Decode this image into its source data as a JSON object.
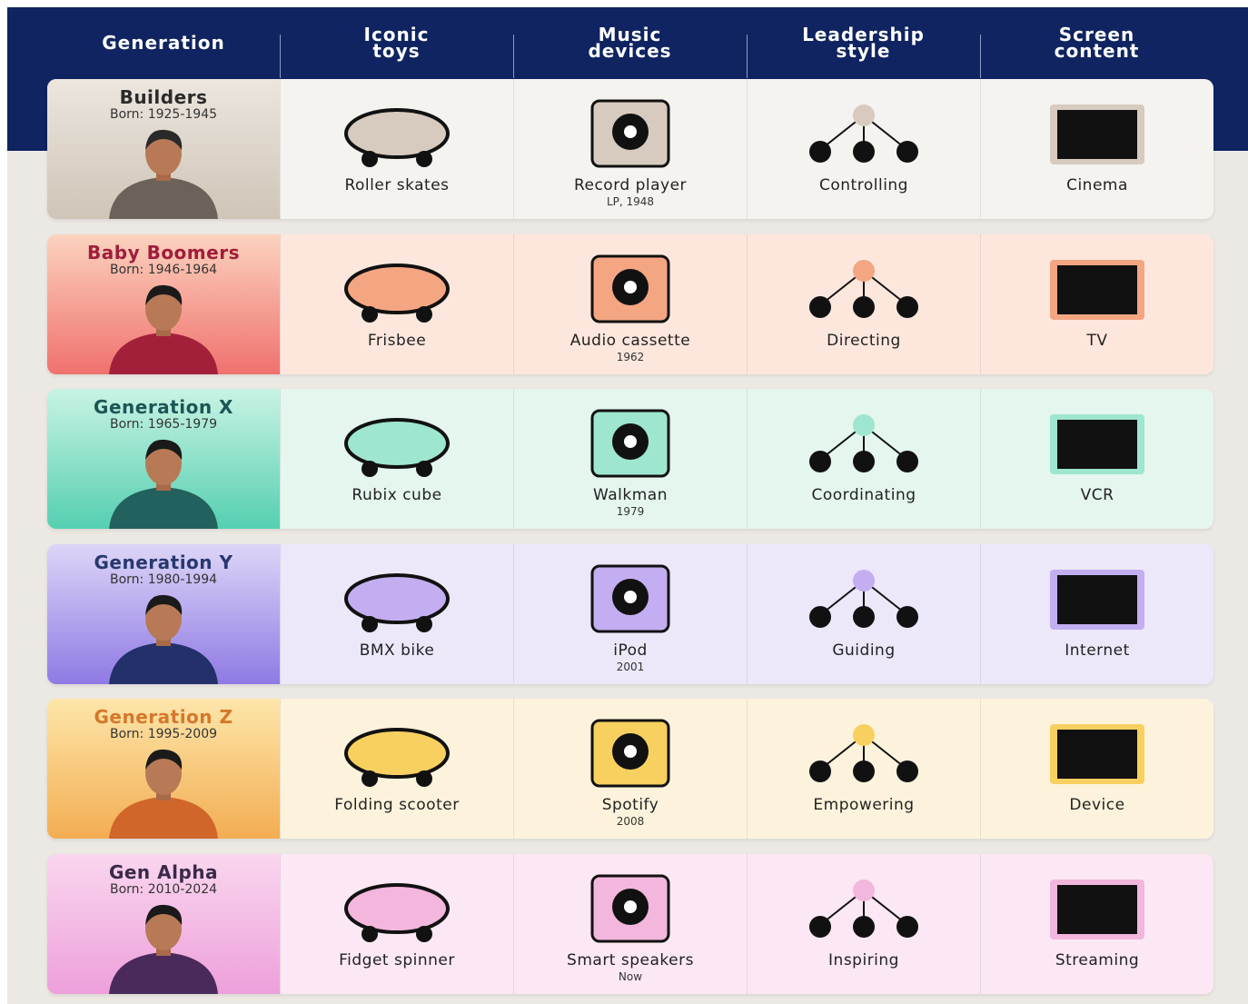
{
  "header": [
    "Generation",
    "Iconic toys",
    "Music devices",
    "Leadership style",
    "Screen content"
  ],
  "rows": [
    {
      "name": "Builders",
      "born": "Born: 1925-1945",
      "cells": [
        {
          "label": "Roller skates"
        },
        {
          "label": "Record player",
          "sub": "LP, 1948"
        },
        {
          "label": "Controlling"
        },
        {
          "label": "Cinema"
        }
      ]
    },
    {
      "name": "Baby Boomers",
      "born": "Born: 1946-1964",
      "cells": [
        {
          "label": "Frisbee"
        },
        {
          "label": "Audio cassette",
          "sub": "1962"
        },
        {
          "label": "Directing"
        },
        {
          "label": "TV"
        }
      ]
    },
    {
      "name": "Generation X",
      "born": "Born: 1965-1979",
      "cells": [
        {
          "label": "Rubix cube"
        },
        {
          "label": "Walkman",
          "sub": "1979"
        },
        {
          "label": "Coordinating"
        },
        {
          "label": "VCR"
        }
      ]
    },
    {
      "name": "Generation Y",
      "born": "Born: 1980-1994",
      "cells": [
        {
          "label": "BMX bike"
        },
        {
          "label": "iPod",
          "sub": "2001"
        },
        {
          "label": "Guiding"
        },
        {
          "label": "Internet"
        }
      ]
    },
    {
      "name": "Generation Z",
      "born": "Born: 1995-2009",
      "cells": [
        {
          "label": "Folding scooter"
        },
        {
          "label": "Spotify",
          "sub": "2008"
        },
        {
          "label": "Empowering"
        },
        {
          "label": "Device"
        }
      ]
    },
    {
      "name": "Gen Alpha",
      "born": "Born: 2010-2024",
      "cells": [
        {
          "label": "Fidget spinner"
        },
        {
          "label": "Smart speakers",
          "sub": "Now"
        },
        {
          "label": "Inspiring"
        },
        {
          "label": "Streaming"
        }
      ]
    }
  ]
}
